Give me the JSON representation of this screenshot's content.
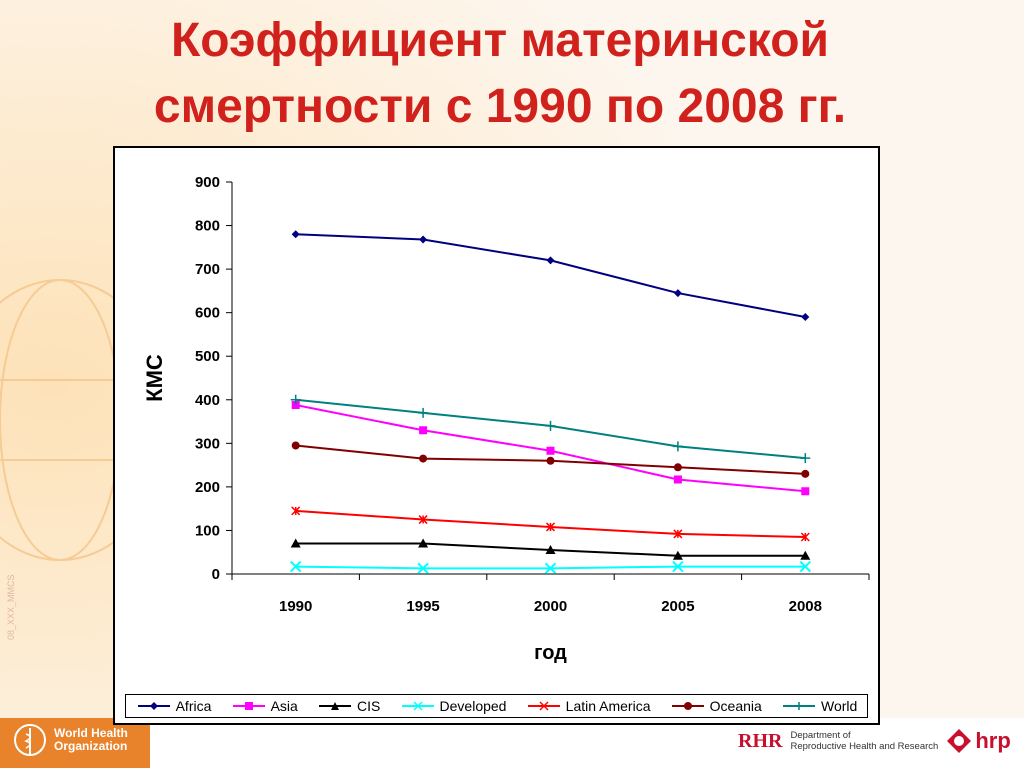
{
  "slide": {
    "title_line1": "Коэффициент материнской",
    "title_line2": "смертности с 1990 по 2008 гг.",
    "watermark": "08_XXX_MMCS"
  },
  "chart_data": {
    "type": "line",
    "x": [
      "1990",
      "1995",
      "2000",
      "2005",
      "2008"
    ],
    "xlabel": "год",
    "ylabel": "КМС",
    "ylim": [
      0,
      900
    ],
    "yticks": [
      0,
      100,
      200,
      300,
      400,
      500,
      600,
      700,
      800,
      900
    ],
    "grid": false,
    "legend_position": "bottom",
    "series": [
      {
        "name": "Africa",
        "color": "#000080",
        "marker": "diamond",
        "values": [
          780,
          768,
          720,
          645,
          590
        ]
      },
      {
        "name": "Asia",
        "color": "#ff00ff",
        "marker": "square",
        "values": [
          388,
          330,
          283,
          217,
          190
        ]
      },
      {
        "name": "CIS",
        "color": "#000000",
        "marker": "triangle",
        "values": [
          70,
          70,
          55,
          42,
          42
        ]
      },
      {
        "name": "Developed",
        "color": "#00ffff",
        "marker": "x",
        "values": [
          17,
          13,
          13,
          17,
          17
        ]
      },
      {
        "name": "Latin America",
        "color": "#ff0000",
        "marker": "star",
        "values": [
          145,
          125,
          108,
          92,
          85
        ]
      },
      {
        "name": "Oceania",
        "color": "#800000",
        "marker": "circle",
        "values": [
          295,
          265,
          260,
          245,
          230
        ]
      },
      {
        "name": "World",
        "color": "#008080",
        "marker": "plus",
        "values": [
          400,
          370,
          340,
          293,
          266
        ]
      }
    ]
  },
  "footer": {
    "who_line1": "World Health",
    "who_line2": "Organization",
    "rhr_label": "RHR",
    "dept_line1": "Department of",
    "dept_line2": "Reproductive Health and Research",
    "hrp_label": "hrp"
  }
}
